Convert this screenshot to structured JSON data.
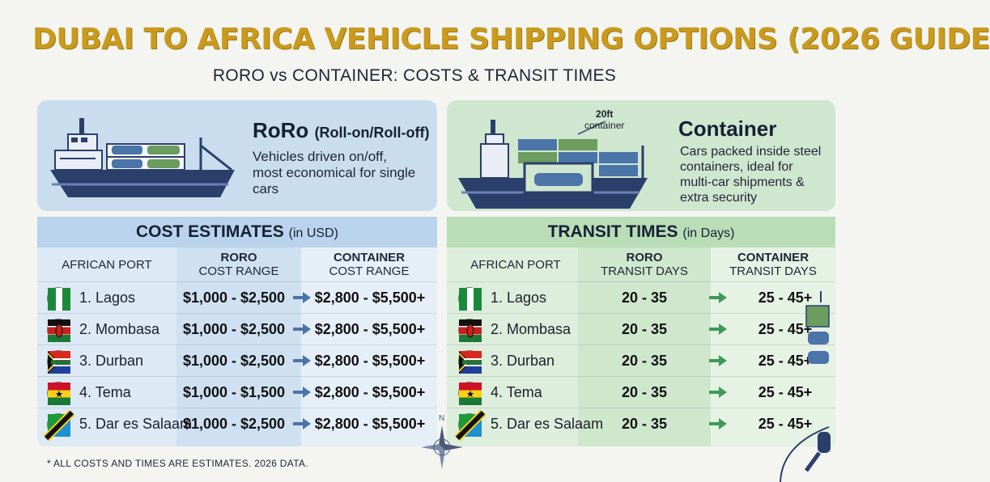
{
  "header": {
    "title": "DUBAI TO AFRICA VEHICLE SHIPPING OPTIONS (2026 GUIDE",
    "subtitle": "RORO vs CONTAINER: COSTS & TRANSIT TIMES"
  },
  "roro": {
    "name": "RoRo",
    "full": "(Roll-on/Roll-off)",
    "desc": [
      "Vehicles driven on/off,",
      "most economical for single",
      "cars"
    ]
  },
  "container": {
    "name": "Container",
    "tag": [
      "20ft",
      "container"
    ],
    "desc": [
      "Cars packed inside steel",
      "containers, ideal for",
      "multi-car shipments &",
      "extra security"
    ]
  },
  "cost_table": {
    "title": "COST ESTIMATES",
    "unit": "(in USD)",
    "headers": [
      {
        "top": "",
        "bottom": "AFRICAN PORT"
      },
      {
        "top": "RORO",
        "bottom": "COST RANGE"
      },
      {
        "top": "CONTAINER",
        "bottom": "COST RANGE"
      }
    ],
    "rows": [
      {
        "port": "1. Lagos",
        "flag": "nigeria",
        "roro": "$1,000 - $2,500",
        "container": "$2,800 - $5,500+"
      },
      {
        "port": "2. Mombasa",
        "flag": "kenya",
        "roro": "$1,000 - $2,500",
        "container": "$2,800 - $5,500+"
      },
      {
        "port": "3. Durban",
        "flag": "south-africa",
        "roro": "$1,000 - $2,500",
        "container": "$2,800 - $5,500+"
      },
      {
        "port": "4. Tema",
        "flag": "ghana",
        "roro": "$1,000 - $1,500",
        "container": "$2,800 - $5,500+"
      },
      {
        "port": "5. Dar es Salaam",
        "flag": "tanzania",
        "roro": "$1,000 - $2,500",
        "container": "$2,800 - $5,500+"
      }
    ]
  },
  "time_table": {
    "title": "TRANSIT TIMES",
    "unit": "(in Days)",
    "headers": [
      {
        "top": "",
        "bottom": "AFRICAN PORT"
      },
      {
        "top": "RORO",
        "bottom": "TRANSIT DAYS"
      },
      {
        "top": "CONTAINER",
        "bottom": "TRANSIT DAYS"
      }
    ],
    "rows": [
      {
        "port": "1. Lagos",
        "flag": "nigeria",
        "roro": "20 - 35",
        "container": "25 - 45+"
      },
      {
        "port": "2. Mombasa",
        "flag": "kenya",
        "roro": "20 - 35",
        "container": "25 - 45+"
      },
      {
        "port": "3. Durban",
        "flag": "south-africa",
        "roro": "20 - 35",
        "container": "25 - 45+"
      },
      {
        "port": "4. Tema",
        "flag": "ghana",
        "roro": "20 - 35",
        "container": "25 - 45+"
      },
      {
        "port": "5. Dar es Salaam",
        "flag": "tanzania",
        "roro": "20 - 35",
        "container": "25 - 45+"
      }
    ]
  },
  "compass": {
    "label": "N"
  },
  "footnote": "* ALL COSTS AND TIMES ARE ESTIMATES. 2026 DATA.",
  "colors": {
    "title_gold": "#c99a1e",
    "roro_blue": "#c9ddef",
    "container_green": "#cfe6cf",
    "ship_hull": "#2b3f6b"
  }
}
